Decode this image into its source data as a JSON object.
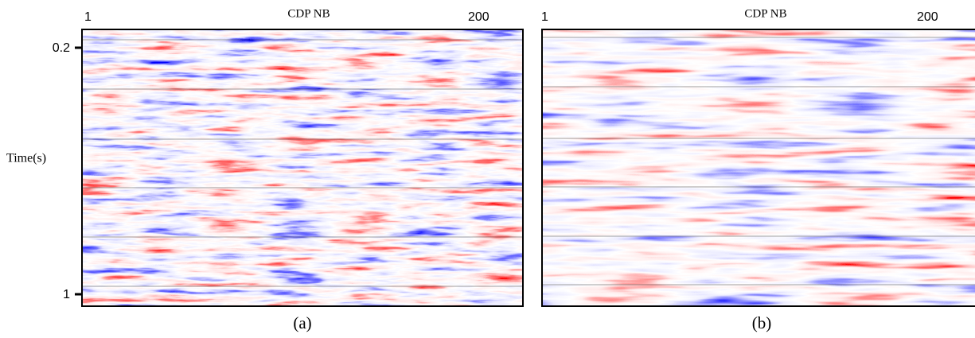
{
  "panels": [
    {
      "x_axis_title": "CDP NB",
      "x_tick_labels": [
        "1",
        "200"
      ],
      "y_axis_title": "Time(s)",
      "y_tick_labels": [
        "0.2",
        "1"
      ],
      "caption": "(a)"
    },
    {
      "x_axis_title": "CDP NB",
      "x_tick_labels": [
        "1",
        "200"
      ],
      "caption": "(b)"
    }
  ]
}
